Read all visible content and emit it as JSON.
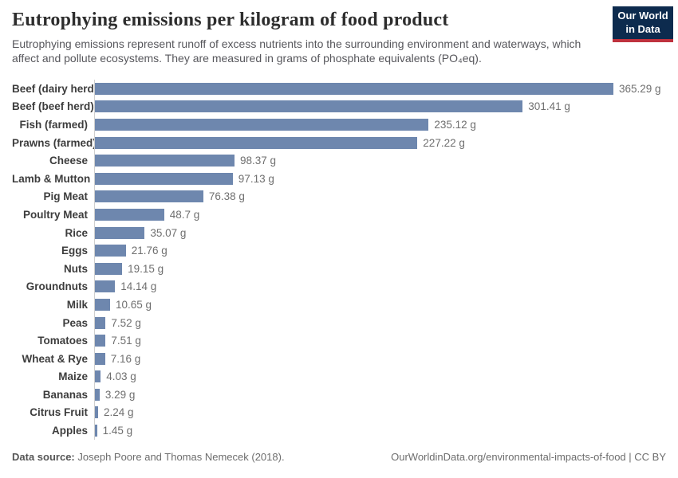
{
  "header": {
    "title": "Eutrophying emissions per kilogram of food product",
    "subtitle": "Eutrophying emissions represent runoff of excess nutrients into the surrounding environment and waterways, which affect and pollute ecosystems. They are measured in grams of phosphate equivalents (PO₄eq).",
    "logo": {
      "line1": "Our World",
      "line2": "in Data"
    }
  },
  "colors": {
    "bar": "#6e87ae",
    "logo_background": "#0d2b4e",
    "logo_accent": "#bf323e",
    "title_text": "#2d2d2d",
    "subtitle_text": "#57575c",
    "category_label_text": "#3d3d3d",
    "value_label_text": "#6f6f6f",
    "axis_line": "#cfcfcf"
  },
  "chart_data": {
    "type": "bar",
    "orientation": "horizontal",
    "title": "Eutrophying emissions per kilogram of food product",
    "xlabel": "",
    "ylabel": "",
    "unit": "g",
    "xlim": [
      0,
      365.29
    ],
    "grid": false,
    "legend": false,
    "categories": [
      "Beef (dairy herd)",
      "Beef (beef herd)",
      "Fish (farmed)",
      "Prawns (farmed)",
      "Cheese",
      "Lamb & Mutton",
      "Pig Meat",
      "Poultry Meat",
      "Rice",
      "Eggs",
      "Nuts",
      "Groundnuts",
      "Milk",
      "Peas",
      "Tomatoes",
      "Wheat & Rye",
      "Maize",
      "Bananas",
      "Citrus Fruit",
      "Apples"
    ],
    "values": [
      365.29,
      301.41,
      235.12,
      227.22,
      98.37,
      97.13,
      76.38,
      48.7,
      35.07,
      21.76,
      19.15,
      14.14,
      10.65,
      7.52,
      7.51,
      7.16,
      4.03,
      3.29,
      2.24,
      1.45
    ],
    "value_labels": [
      "365.29 g",
      "301.41 g",
      "235.12 g",
      "227.22 g",
      "98.37 g",
      "97.13 g",
      "76.38 g",
      "48.7 g",
      "35.07 g",
      "21.76 g",
      "19.15 g",
      "14.14 g",
      "10.65 g",
      "7.52 g",
      "7.51 g",
      "7.16 g",
      "4.03 g",
      "3.29 g",
      "2.24 g",
      "1.45 g"
    ]
  },
  "footer": {
    "source_label": "Data source:",
    "source_text": "Joseph Poore and Thomas Nemecek (2018).",
    "credit": "OurWorldinData.org/environmental-impacts-of-food | CC BY"
  }
}
